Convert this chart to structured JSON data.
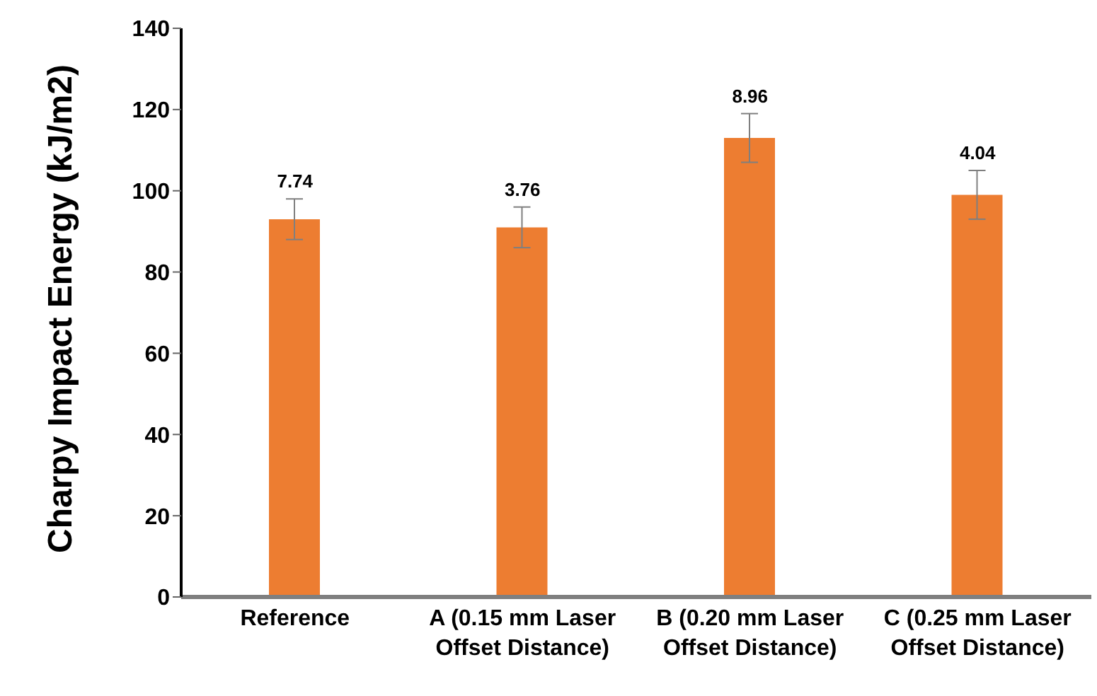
{
  "chart_data": {
    "type": "bar",
    "ylabel": "Charpy Impact Energy (kJ/m2)",
    "categories": [
      "Reference",
      "A (0.15 mm Laser Offset Distance)",
      "B (0.20 mm Laser Offset Distance)",
      "C (0.25 mm Laser Offset Distance)"
    ],
    "values": [
      93,
      91,
      113,
      99
    ],
    "errors": [
      5,
      5,
      6,
      6
    ],
    "color": "#ed7d31",
    "ylim": [
      0,
      140
    ],
    "yticks": [
      0,
      20,
      40,
      60,
      80,
      100,
      120,
      140
    ],
    "grid": false,
    "annotations": [
      {
        "text": "7.74",
        "x": "Reference",
        "y": 98
      },
      {
        "text": "3.76",
        "x": "A (0.15 mm Laser Offset Distance)",
        "y": 96
      },
      {
        "text": "8.96",
        "x": "B (0.20 mm Laser Offset Distance)",
        "y": 119
      },
      {
        "text": "4.04",
        "x": "C (0.25 mm Laser Offset Distance)",
        "y": 105
      }
    ]
  }
}
